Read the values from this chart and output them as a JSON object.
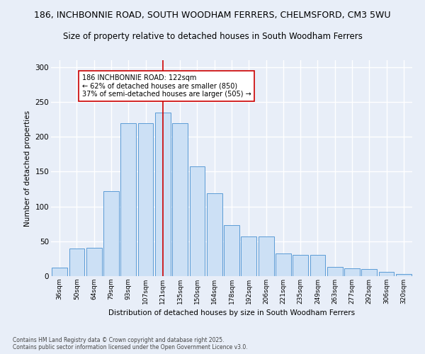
{
  "title_line1": "186, INCHBONNIE ROAD, SOUTH WOODHAM FERRERS, CHELMSFORD, CM3 5WU",
  "title_line2": "Size of property relative to detached houses in South Woodham Ferrers",
  "xlabel": "Distribution of detached houses by size in South Woodham Ferrers",
  "ylabel": "Number of detached properties",
  "categories": [
    "36sqm",
    "50sqm",
    "64sqm",
    "79sqm",
    "93sqm",
    "107sqm",
    "121sqm",
    "135sqm",
    "150sqm",
    "164sqm",
    "178sqm",
    "192sqm",
    "206sqm",
    "221sqm",
    "235sqm",
    "249sqm",
    "263sqm",
    "277sqm",
    "292sqm",
    "306sqm",
    "320sqm"
  ],
  "values": [
    12,
    40,
    41,
    122,
    220,
    220,
    235,
    220,
    158,
    119,
    73,
    57,
    57,
    33,
    31,
    30,
    13,
    11,
    10,
    6,
    3
  ],
  "bar_color": "#cce0f5",
  "bar_edge_color": "#5b9bd5",
  "bg_color": "#e8eef8",
  "grid_color": "#ffffff",
  "vline_x": 6,
  "vline_color": "#cc0000",
  "annotation_text": "186 INCHBONNIE ROAD: 122sqm\n← 62% of detached houses are smaller (850)\n37% of semi-detached houses are larger (505) →",
  "annotation_box_color": "#ffffff",
  "annotation_box_edge": "#cc0000",
  "footnote": "Contains HM Land Registry data © Crown copyright and database right 2025.\nContains public sector information licensed under the Open Government Licence v3.0.",
  "title_fontsize": 9,
  "subtitle_fontsize": 8.5,
  "ylim": [
    0,
    310
  ],
  "yticks": [
    0,
    50,
    100,
    150,
    200,
    250,
    300
  ]
}
